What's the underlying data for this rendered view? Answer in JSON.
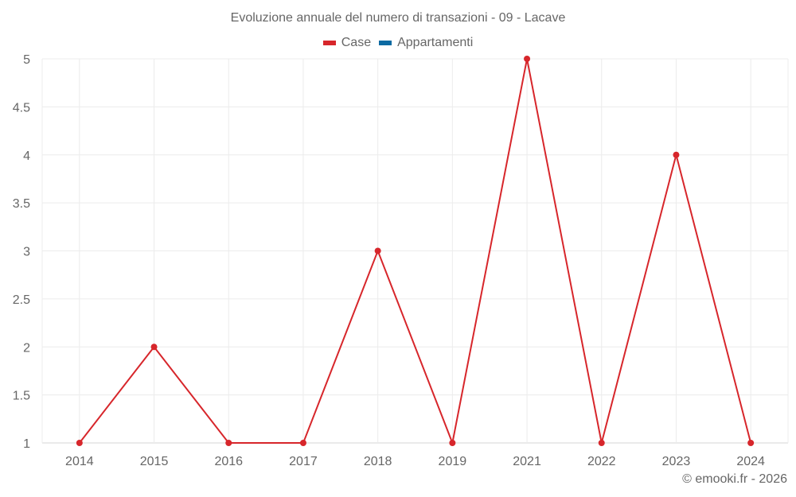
{
  "chart_data": {
    "type": "line",
    "title": "Evoluzione annuale del numero di transazioni - 09 - Lacave",
    "xlabel": "",
    "ylabel": "",
    "categories": [
      "2014",
      "2015",
      "2016",
      "2017",
      "2018",
      "2019",
      "2021",
      "2022",
      "2023",
      "2024"
    ],
    "series": [
      {
        "name": "Case",
        "color": "#d7262b",
        "values": [
          1,
          2,
          1,
          1,
          3,
          1,
          5,
          1,
          4,
          1
        ]
      },
      {
        "name": "Appartamenti",
        "color": "#0b6aa2",
        "values": []
      }
    ],
    "ylim": [
      1,
      5
    ],
    "yticks": [
      "5",
      "4.5",
      "4",
      "3.5",
      "3",
      "2.5",
      "2",
      "1.5",
      "1"
    ],
    "grid": true,
    "legend_position": "top"
  },
  "header": {
    "title": "Evoluzione annuale del numero di transazioni - 09 - Lacave"
  },
  "legend": {
    "items": [
      {
        "label": "Case",
        "color": "#d7262b"
      },
      {
        "label": "Appartamenti",
        "color": "#0b6aa2"
      }
    ]
  },
  "footer": {
    "credit": "© emooki.fr - 2026"
  }
}
